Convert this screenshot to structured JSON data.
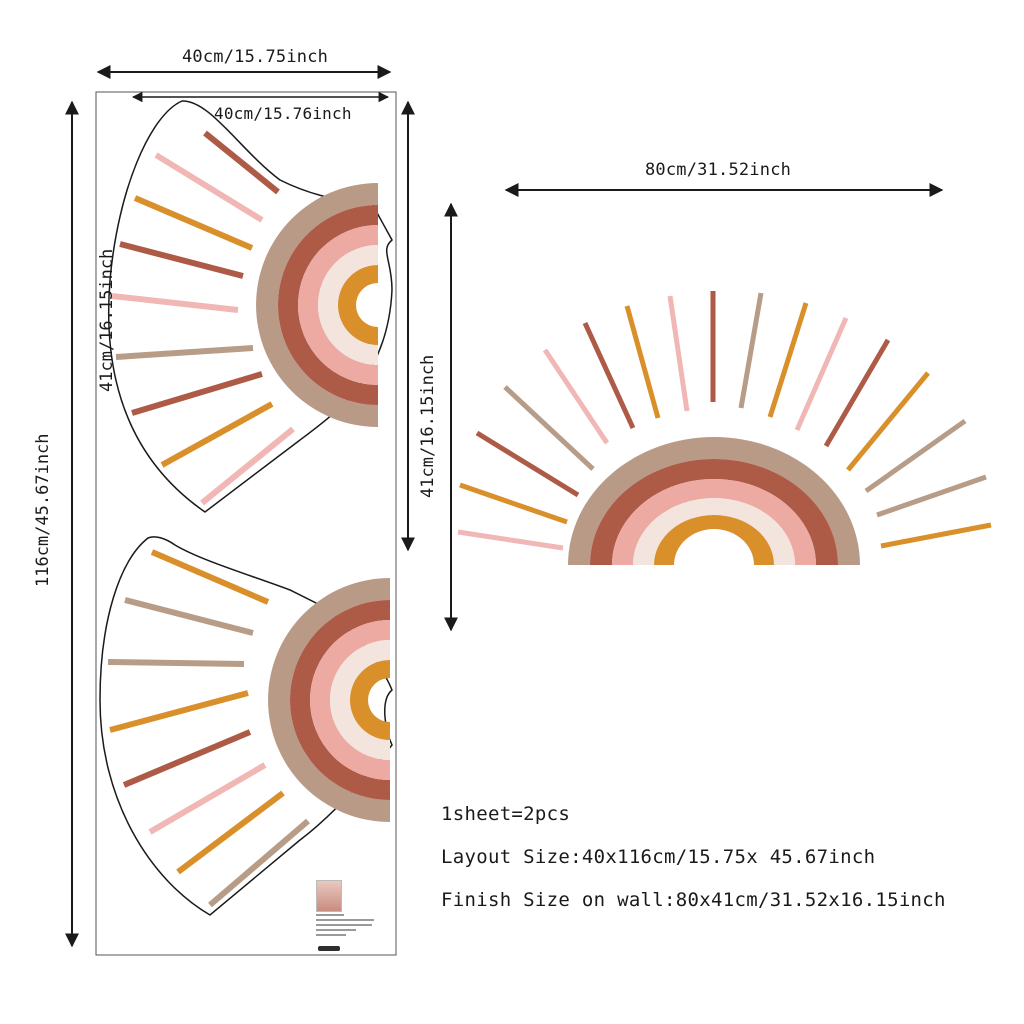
{
  "layout_sheet": {
    "width_label": "40cm/15.75inch",
    "inner_width_label": "40cm/15.76inch",
    "height_label": "116cm/45.67inch",
    "piece_height_label": "41cm/16.15inch"
  },
  "finished_decal": {
    "width_label": "80cm/31.52inch",
    "height_label": "41cm/16.15inch"
  },
  "specs": {
    "line1": "1sheet=2pcs",
    "line2": "Layout Size:40x116cm/15.75x 45.67inch",
    "line3": "Finish Size on wall:80x41cm/31.52x16.15inch"
  },
  "colors": {
    "tan": "#b99a87",
    "rust": "#ad5a46",
    "pink": "#ecaaa2",
    "cream": "#f4e4de",
    "mustard": "#d98f2a",
    "light_pink": "#f0b7b5",
    "taupe": "#b79c88",
    "outline": "#1a1a1a"
  }
}
